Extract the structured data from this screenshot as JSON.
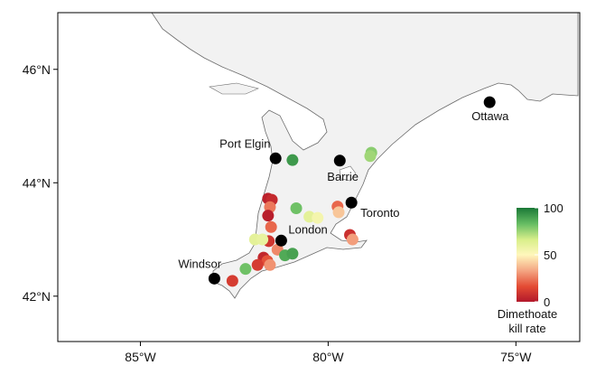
{
  "colors": {
    "land_fill": "#f2f2f2",
    "land_stroke": "#6b6b6b",
    "city_dot": "#000000",
    "kill_rate_scale": [
      "#b2182b",
      "#e34a33",
      "#f4a582",
      "#fff7bc",
      "#d9ef8b",
      "#66bd63",
      "#1a7837"
    ]
  },
  "chart_data": {
    "type": "scatter",
    "xlim": [
      -87.2,
      -73.3
    ],
    "ylim": [
      41.2,
      47.0
    ],
    "x_ticks": [
      -85,
      -80,
      -75
    ],
    "x_tick_labels": [
      "85°W",
      "80°W",
      "75°W"
    ],
    "y_ticks": [
      42,
      44,
      46
    ],
    "y_tick_labels": [
      "42°N",
      "44°N",
      "46°N"
    ],
    "legend": {
      "title_line1": "Dimethoate",
      "title_line2": "kill rate",
      "min": 0,
      "max": 100,
      "ticks": [
        0,
        50,
        100
      ],
      "tick_labels": [
        "0",
        "50",
        "100"
      ],
      "placement": "bottom-right"
    },
    "cities": [
      {
        "name": "Ottawa",
        "lon": -75.7,
        "lat": 45.42
      },
      {
        "name": "Port Elgin",
        "lon": -81.4,
        "lat": 44.43
      },
      {
        "name": "Barrie",
        "lon": -79.69,
        "lat": 44.39
      },
      {
        "name": "Toronto",
        "lon": -79.38,
        "lat": 43.65
      },
      {
        "name": "London",
        "lon": -81.25,
        "lat": 42.98
      },
      {
        "name": "Windsor",
        "lon": -83.03,
        "lat": 42.31
      }
    ],
    "sites": [
      {
        "lon": -78.85,
        "lat": 44.53,
        "kill_rate": 78
      },
      {
        "lon": -78.88,
        "lat": 44.47,
        "kill_rate": 75
      },
      {
        "lon": -80.95,
        "lat": 44.4,
        "kill_rate": 92
      },
      {
        "lon": -81.6,
        "lat": 43.72,
        "kill_rate": 3
      },
      {
        "lon": -81.5,
        "lat": 43.7,
        "kill_rate": 6
      },
      {
        "lon": -81.55,
        "lat": 43.57,
        "kill_rate": 25
      },
      {
        "lon": -81.6,
        "lat": 43.42,
        "kill_rate": 2
      },
      {
        "lon": -81.52,
        "lat": 43.22,
        "kill_rate": 22
      },
      {
        "lon": -80.85,
        "lat": 43.55,
        "kill_rate": 82
      },
      {
        "lon": -80.5,
        "lat": 43.4,
        "kill_rate": 62
      },
      {
        "lon": -80.28,
        "lat": 43.38,
        "kill_rate": 55
      },
      {
        "lon": -79.75,
        "lat": 43.58,
        "kill_rate": 22
      },
      {
        "lon": -79.72,
        "lat": 43.48,
        "kill_rate": 40
      },
      {
        "lon": -81.58,
        "lat": 42.97,
        "kill_rate": 10
      },
      {
        "lon": -81.95,
        "lat": 43.0,
        "kill_rate": 62
      },
      {
        "lon": -81.75,
        "lat": 43.0,
        "kill_rate": 60
      },
      {
        "lon": -81.35,
        "lat": 42.82,
        "kill_rate": 28
      },
      {
        "lon": -81.15,
        "lat": 42.72,
        "kill_rate": 88
      },
      {
        "lon": -80.95,
        "lat": 42.75,
        "kill_rate": 90
      },
      {
        "lon": -81.72,
        "lat": 42.68,
        "kill_rate": 5
      },
      {
        "lon": -81.62,
        "lat": 42.62,
        "kill_rate": 18
      },
      {
        "lon": -81.55,
        "lat": 42.55,
        "kill_rate": 30
      },
      {
        "lon": -81.88,
        "lat": 42.55,
        "kill_rate": 12
      },
      {
        "lon": -82.2,
        "lat": 42.48,
        "kill_rate": 82
      },
      {
        "lon": -82.55,
        "lat": 42.27,
        "kill_rate": 12
      },
      {
        "lon": -79.42,
        "lat": 43.08,
        "kill_rate": 8
      },
      {
        "lon": -79.35,
        "lat": 43.0,
        "kill_rate": 32
      }
    ]
  }
}
